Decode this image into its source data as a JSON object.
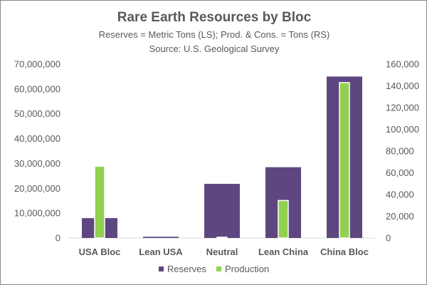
{
  "chart_data": {
    "type": "bar",
    "title": "Rare Earth Resources by Bloc",
    "subtitle": "Reserves = Metric Tons (LS); Prod. & Cons. = Tons (RS)",
    "source": "Source:  U.S. Geological Survey",
    "categories": [
      "USA Bloc",
      "Lean USA",
      "Neutral",
      "Lean China",
      "China Bloc"
    ],
    "series": [
      {
        "name": "Reserves",
        "axis": "left",
        "color": "#5e4780",
        "values": [
          8000000,
          500000,
          21800000,
          28500000,
          65000000
        ]
      },
      {
        "name": "Production",
        "axis": "right",
        "color": "#92d050",
        "values": [
          66000,
          0,
          700,
          34500,
          143000
        ]
      }
    ],
    "y_left": {
      "min": 0,
      "max": 70000000,
      "step": 10000000,
      "tick_labels": [
        "0",
        "10,000,000",
        "20,000,000",
        "30,000,000",
        "40,000,000",
        "50,000,000",
        "60,000,000",
        "70,000,000"
      ]
    },
    "y_right": {
      "min": 0,
      "max": 160000,
      "step": 20000,
      "tick_labels": [
        "0",
        "20,000",
        "40,000",
        "60,000",
        "80,000",
        "100,000",
        "120,000",
        "140,000",
        "160,000"
      ]
    },
    "grid": false,
    "legend_position": "bottom"
  }
}
